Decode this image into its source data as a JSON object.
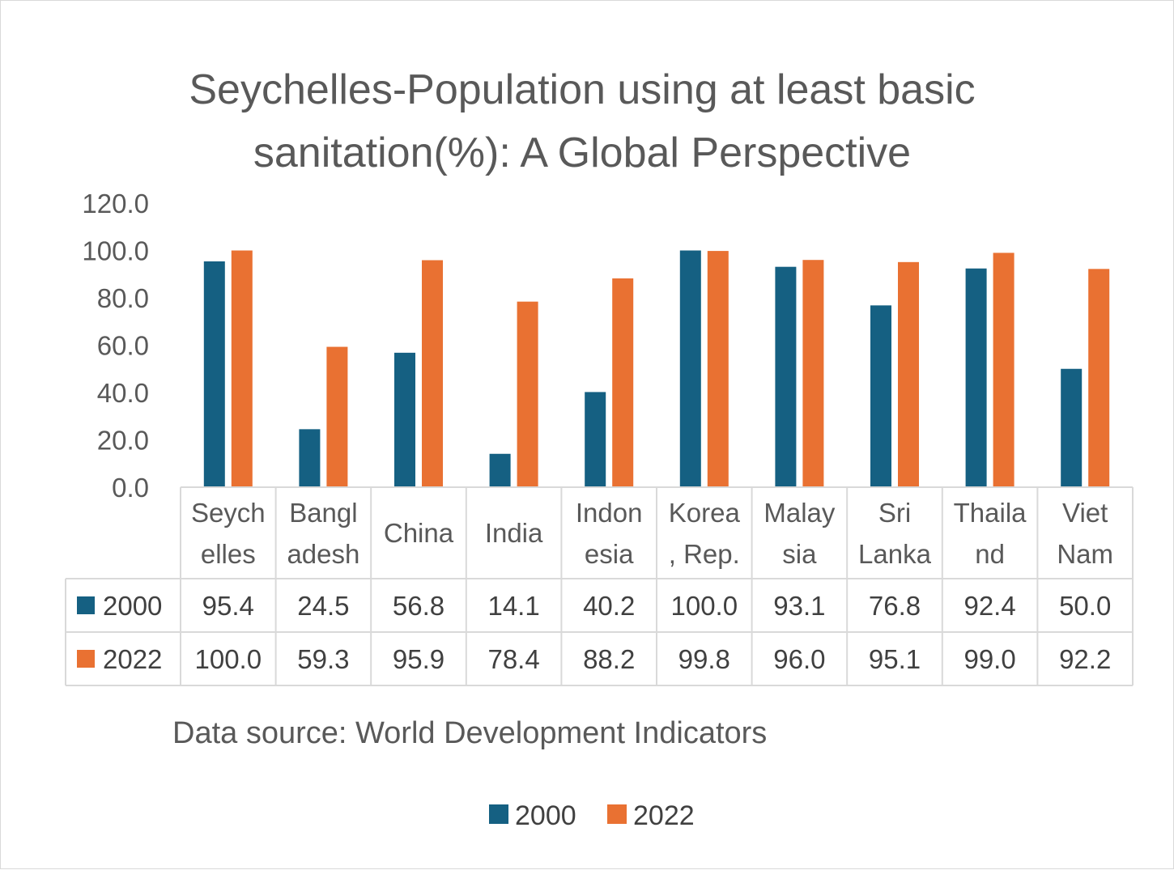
{
  "chart_data": {
    "type": "bar",
    "title_lines": [
      "Seychelles-Population using at least basic",
      "sanitation(%): A Global Perspective"
    ],
    "categories": [
      "Seychelles",
      "Bangladesh",
      "China",
      "India",
      "Indonesia",
      "Korea, Rep.",
      "Malaysia",
      "Sri Lanka",
      "Thailand",
      "Viet Nam"
    ],
    "category_label_lines": [
      [
        "Seych",
        "elles"
      ],
      [
        "Bangl",
        "adesh"
      ],
      [
        "China"
      ],
      [
        "India"
      ],
      [
        "Indon",
        "esia"
      ],
      [
        "Korea",
        ", Rep."
      ],
      [
        "Malay",
        "sia"
      ],
      [
        "Sri",
        "Lanka"
      ],
      [
        "Thaila",
        "nd"
      ],
      [
        "Viet",
        "Nam"
      ]
    ],
    "series": [
      {
        "name": "2000",
        "color": "#156082",
        "values": [
          95.4,
          24.5,
          56.8,
          14.1,
          40.2,
          100.0,
          93.1,
          76.8,
          92.4,
          50.0
        ],
        "labels": [
          "95.4",
          "24.5",
          "56.8",
          "14.1",
          "40.2",
          "100.0",
          "93.1",
          "76.8",
          "92.4",
          "50.0"
        ]
      },
      {
        "name": "2022",
        "color": "#E97132",
        "values": [
          100.0,
          59.3,
          95.9,
          78.4,
          88.2,
          99.8,
          96.0,
          95.1,
          99.0,
          92.2
        ],
        "labels": [
          "100.0",
          "59.3",
          "95.9",
          "78.4",
          "88.2",
          "99.8",
          "96.0",
          "95.1",
          "99.0",
          "92.2"
        ]
      }
    ],
    "ylim": [
      0,
      120
    ],
    "y_ticks": [
      "0.0",
      "20.0",
      "40.0",
      "60.0",
      "80.0",
      "100.0",
      "120.0"
    ],
    "data_table": true,
    "legend_position": "bottom",
    "source_note": "Data source:  World Development Indicators"
  }
}
